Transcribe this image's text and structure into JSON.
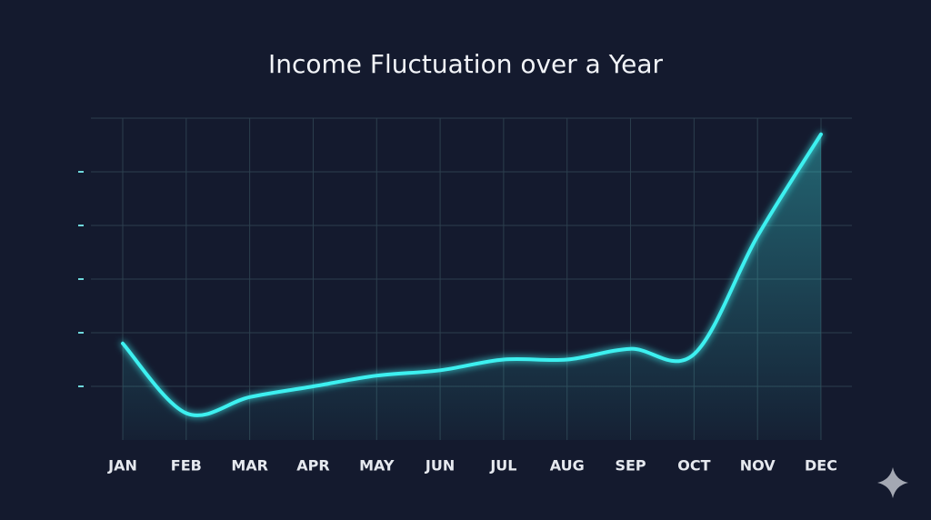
{
  "chart_data": {
    "type": "line",
    "title": "Income Fluctuation over a Year",
    "categories": [
      "JAN",
      "FEB",
      "MAR",
      "APR",
      "MAY",
      "JUN",
      "JUL",
      "AUG",
      "SEP",
      "OCT",
      "NOV",
      "DEC"
    ],
    "values": [
      1.8,
      0.5,
      0.8,
      1.0,
      1.2,
      1.3,
      1.5,
      1.5,
      1.7,
      1.6,
      3.8,
      5.7
    ],
    "color": "#3ef0f0",
    "ylim": [
      0,
      6
    ],
    "yticks": [
      1,
      2,
      3,
      4,
      5
    ],
    "grid": true
  }
}
